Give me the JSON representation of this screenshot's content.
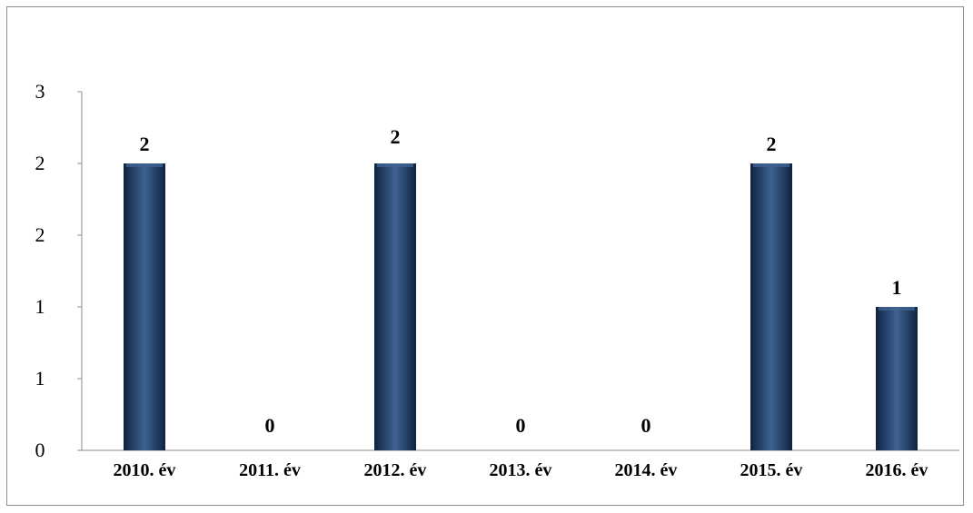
{
  "chart_data": {
    "type": "bar",
    "categories": [
      "2010. év",
      "2011. év",
      "2012. év",
      "2013. év",
      "2014. év",
      "2015. év",
      "2016. év"
    ],
    "values": [
      2,
      0,
      2,
      0,
      0,
      2,
      1
    ],
    "data_labels": [
      "2",
      "0",
      "2",
      "0",
      "0",
      "2",
      "1"
    ],
    "y_tick_labels": [
      "0",
      "1",
      "1",
      "2",
      "2",
      "3"
    ],
    "ylim": [
      0,
      2.5
    ],
    "title": "",
    "xlabel": "",
    "ylabel": "",
    "grid": false,
    "legend": "none",
    "colors": {
      "bar": "#1f3a5f",
      "bar_dark": "#0f2340",
      "bar_light": "#3f6290",
      "axis": "#8c8c8c"
    }
  }
}
